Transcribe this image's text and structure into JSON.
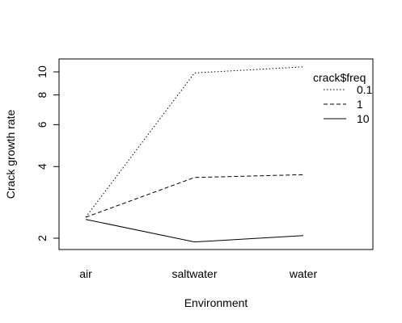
{
  "chart_data": {
    "type": "line",
    "title": "",
    "xlabel": "Environment",
    "ylabel": "Crack growth rate",
    "categories": [
      "air",
      "saltwater",
      "water"
    ],
    "y_scale": "log",
    "ylim": [
      1.8,
      11.3
    ],
    "y_ticks": [
      2,
      4,
      6,
      8,
      10
    ],
    "grid": false,
    "legend": {
      "title": "crack$freq",
      "placement": "top-right"
    },
    "series": [
      {
        "name": "0.1",
        "values": [
          2.45,
          9.9,
          10.5
        ],
        "line": "dotted"
      },
      {
        "name": "1",
        "values": [
          2.45,
          3.6,
          3.7
        ],
        "line": "dashed"
      },
      {
        "name": "10",
        "values": [
          2.4,
          1.93,
          2.05
        ],
        "line": "solid"
      }
    ]
  }
}
